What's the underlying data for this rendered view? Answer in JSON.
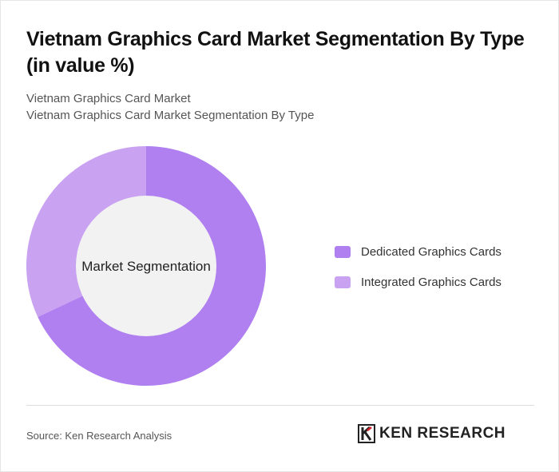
{
  "header": {
    "title": "Vietnam Graphics Card Market Segmentation By Type (in value %)",
    "subtitle_1": "Vietnam Graphics Card Market",
    "subtitle_2": "Vietnam Graphics Card Market Segmentation By Type"
  },
  "chart_data": {
    "type": "pie",
    "variant": "donut",
    "center_label": "Market Segmentation",
    "categories": [
      "Dedicated Graphics Cards",
      "Integrated Graphics Cards"
    ],
    "values": [
      68,
      32
    ],
    "colors": [
      "#b07ff0",
      "#c9a2f2"
    ],
    "legend_position": "right"
  },
  "footer": {
    "source": "Source: Ken Research Analysis",
    "logo_text": "KEN RESEARCH"
  }
}
